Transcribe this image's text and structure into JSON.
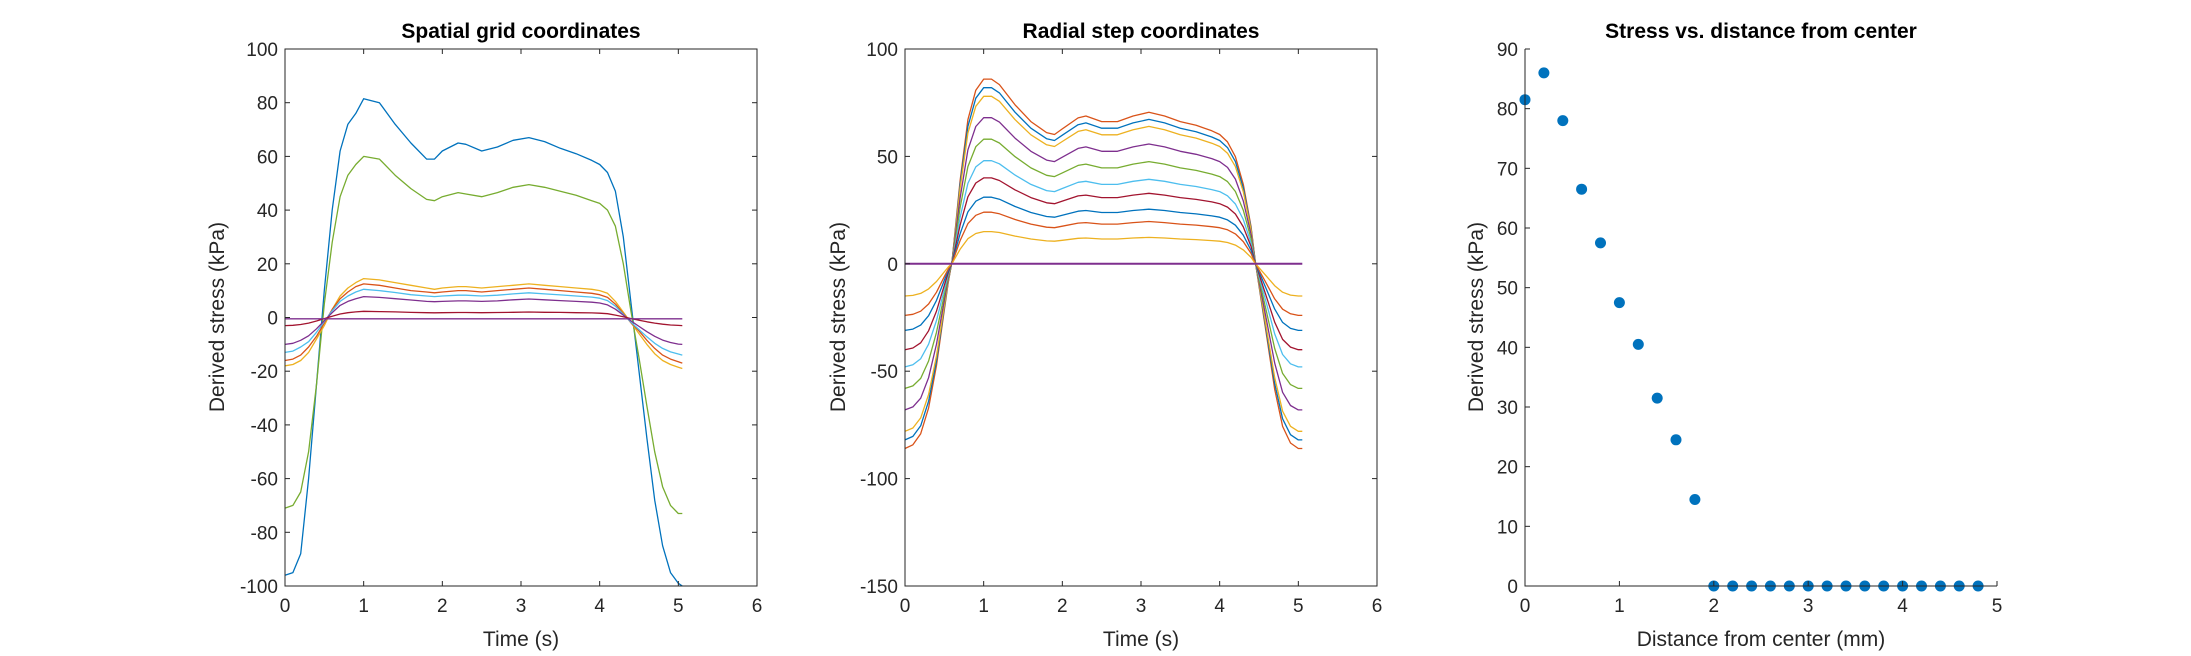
{
  "chart_data": [
    {
      "id": "p1",
      "type": "line",
      "title": "Spatial grid coordinates",
      "xlabel": "Time (s)",
      "ylabel": "Derived stress (kPa)",
      "xlim": [
        0,
        6
      ],
      "ylim": [
        -100,
        100
      ],
      "xticks": [
        0,
        1,
        2,
        3,
        4,
        5,
        6
      ],
      "yticks": [
        -100,
        -80,
        -60,
        -40,
        -20,
        0,
        20,
        40,
        60,
        80,
        100
      ],
      "x": [
        0,
        0.1,
        0.2,
        0.3,
        0.4,
        0.5,
        0.6,
        0.7,
        0.8,
        0.9,
        1.0,
        1.2,
        1.4,
        1.6,
        1.8,
        1.9,
        2.0,
        2.2,
        2.3,
        2.5,
        2.7,
        2.9,
        3.1,
        3.3,
        3.5,
        3.7,
        3.9,
        4.0,
        4.1,
        4.2,
        4.3,
        4.4,
        4.5,
        4.6,
        4.7,
        4.8,
        4.9,
        5.0,
        5.05
      ],
      "series": [
        {
          "color": "#0072BD",
          "values": [
            -96,
            -95,
            -88,
            -60,
            -25,
            10,
            40,
            62,
            72,
            76,
            81.5,
            80,
            72,
            65,
            59,
            59,
            62,
            65,
            64.5,
            62,
            63.5,
            66,
            67,
            65.5,
            63,
            61,
            58.5,
            57,
            54,
            47,
            30,
            5,
            -20,
            -45,
            -68,
            -85,
            -95,
            -99,
            -100
          ]
        },
        {
          "color": "#77AC30",
          "values": [
            -71,
            -70,
            -65,
            -50,
            -25,
            5,
            28,
            45,
            53,
            57,
            60,
            59,
            53,
            48,
            44,
            43.5,
            45,
            46.5,
            46,
            45,
            46.5,
            48.5,
            49.5,
            48.5,
            47,
            45.5,
            43.5,
            42.5,
            40,
            34,
            20,
            2,
            -15,
            -33,
            -50,
            -63,
            -70,
            -73,
            -73
          ]
        },
        {
          "color": "#EDB120",
          "values": [
            -18,
            -17.5,
            -16,
            -13,
            -8,
            -3,
            3,
            8,
            11,
            13,
            14.5,
            14,
            13,
            12,
            11,
            10.5,
            11,
            11.5,
            11.5,
            11,
            11.5,
            12,
            12.5,
            12,
            11.5,
            11,
            10.5,
            10,
            9,
            6,
            2,
            -2,
            -6,
            -10,
            -13.5,
            -16,
            -17.5,
            -18.5,
            -19
          ]
        },
        {
          "color": "#D95319",
          "values": [
            -16,
            -15.5,
            -14,
            -11,
            -7,
            -2,
            3,
            7,
            9.5,
            11.5,
            12.5,
            12,
            11,
            10,
            9.5,
            9.2,
            9.5,
            10,
            10,
            9.5,
            10,
            10.5,
            11,
            10.5,
            10,
            9.5,
            9,
            8.5,
            7.5,
            5,
            1.5,
            -2,
            -5,
            -8.5,
            -11.5,
            -14,
            -15.5,
            -16.5,
            -17
          ]
        },
        {
          "color": "#4DBEEE",
          "values": [
            -13,
            -12.5,
            -11,
            -9,
            -5.5,
            -1.5,
            2.5,
            6,
            8,
            9.5,
            10.5,
            10,
            9.3,
            8.5,
            8,
            7.8,
            8,
            8.3,
            8.3,
            8,
            8.3,
            8.8,
            9.2,
            8.8,
            8.4,
            8,
            7.6,
            7.2,
            6.3,
            4.2,
            1.2,
            -1.8,
            -4.5,
            -7.2,
            -9.6,
            -11.5,
            -12.8,
            -13.6,
            -14
          ]
        },
        {
          "color": "#7E2F8E",
          "values": [
            -10,
            -9.6,
            -8.5,
            -6.8,
            -4.2,
            -1.2,
            1.8,
            4.5,
            6,
            7,
            7.8,
            7.5,
            7,
            6.5,
            6,
            5.9,
            6,
            6.2,
            6.2,
            6,
            6.2,
            6.6,
            6.9,
            6.6,
            6.3,
            6,
            5.7,
            5.4,
            4.7,
            3.1,
            0.9,
            -1.3,
            -3.3,
            -5.3,
            -7,
            -8.4,
            -9.3,
            -9.9,
            -10
          ]
        },
        {
          "color": "#A2142F",
          "values": [
            -3,
            -2.9,
            -2.6,
            -2.1,
            -1.3,
            -0.4,
            0.5,
            1.3,
            1.8,
            2.1,
            2.3,
            2.2,
            2.1,
            1.9,
            1.8,
            1.75,
            1.8,
            1.85,
            1.85,
            1.8,
            1.85,
            1.95,
            2.05,
            1.95,
            1.9,
            1.8,
            1.7,
            1.6,
            1.4,
            0.9,
            0.3,
            -0.4,
            -1,
            -1.6,
            -2.1,
            -2.5,
            -2.8,
            -2.95,
            -3
          ]
        },
        {
          "color": "#7E2F8E",
          "values": [
            -0.5,
            -0.5,
            -0.5,
            -0.5,
            -0.5,
            -0.5,
            -0.5,
            -0.5,
            -0.5,
            -0.5,
            -0.5,
            -0.5,
            -0.5,
            -0.5,
            -0.5,
            -0.5,
            -0.5,
            -0.5,
            -0.5,
            -0.5,
            -0.5,
            -0.5,
            -0.5,
            -0.5,
            -0.5,
            -0.5,
            -0.5,
            -0.5,
            -0.5,
            -0.5,
            -0.5,
            -0.5,
            -0.5,
            -0.5,
            -0.5,
            -0.5,
            -0.5,
            -0.5,
            -0.5
          ]
        }
      ]
    },
    {
      "id": "p2",
      "type": "line",
      "title": "Radial step coordinates",
      "xlabel": "Time (s)",
      "ylabel": "Derived stress (kPa)",
      "xlim": [
        0,
        6
      ],
      "ylim": [
        -150,
        100
      ],
      "xticks": [
        0,
        1,
        2,
        3,
        4,
        5,
        6
      ],
      "yticks": [
        -150,
        -100,
        -50,
        0,
        50,
        100
      ],
      "shape_x": [
        0,
        0.1,
        0.2,
        0.3,
        0.4,
        0.5,
        0.55,
        0.6,
        0.7,
        0.8,
        0.9,
        1.0,
        1.1,
        1.2,
        1.4,
        1.6,
        1.8,
        1.9,
        2.0,
        2.2,
        2.3,
        2.5,
        2.7,
        2.9,
        3.1,
        3.3,
        3.5,
        3.7,
        3.9,
        4.0,
        4.1,
        4.2,
        4.3,
        4.4,
        4.45,
        4.5,
        4.6,
        4.7,
        4.8,
        4.9,
        5.0,
        5.05
      ],
      "shape_y": [
        -1,
        -0.98,
        -0.92,
        -0.78,
        -0.55,
        -0.25,
        -0.1,
        0.02,
        0.45,
        0.78,
        0.94,
        1.0,
        1.0,
        0.97,
        0.86,
        0.77,
        0.71,
        0.7,
        0.73,
        0.79,
        0.8,
        0.77,
        0.77,
        0.8,
        0.82,
        0.8,
        0.77,
        0.75,
        0.72,
        0.7,
        0.66,
        0.58,
        0.43,
        0.2,
        0.02,
        -0.12,
        -0.4,
        -0.68,
        -0.88,
        -0.97,
        -1.0,
        -1.0
      ],
      "series": [
        {
          "color": "#D95319",
          "amplitude": 86
        },
        {
          "color": "#0072BD",
          "amplitude": 82
        },
        {
          "color": "#EDB120",
          "amplitude": 78
        },
        {
          "color": "#7E2F8E",
          "amplitude": 68
        },
        {
          "color": "#77AC30",
          "amplitude": 58
        },
        {
          "color": "#4DBEEE",
          "amplitude": 48
        },
        {
          "color": "#A2142F",
          "amplitude": 40
        },
        {
          "color": "#0072BD",
          "amplitude": 31
        },
        {
          "color": "#D95319",
          "amplitude": 24
        },
        {
          "color": "#EDB120",
          "amplitude": 15
        },
        {
          "color": "#7E2F8E",
          "amplitude": 0
        }
      ]
    },
    {
      "id": "p3",
      "type": "scatter",
      "title": "Stress vs. distance from center",
      "xlabel": "Distance from center (mm)",
      "ylabel": "Derived stress (kPa)",
      "xlim": [
        0,
        5
      ],
      "ylim": [
        0,
        90
      ],
      "xticks": [
        0,
        1,
        2,
        3,
        4,
        5
      ],
      "yticks": [
        0,
        10,
        20,
        30,
        40,
        50,
        60,
        70,
        80,
        90
      ],
      "color": "#0072BD",
      "x": [
        0,
        0.2,
        0.4,
        0.6,
        0.8,
        1.0,
        1.2,
        1.4,
        1.6,
        1.8,
        2.0,
        2.2,
        2.4,
        2.6,
        2.8,
        3.0,
        3.2,
        3.4,
        3.6,
        3.8,
        4.0,
        4.2,
        4.4,
        4.6,
        4.8
      ],
      "y": [
        81.5,
        86,
        78,
        66.5,
        57.5,
        47.5,
        40.5,
        31.5,
        24.5,
        14.5,
        0,
        0,
        0,
        0,
        0,
        0,
        0,
        0,
        0,
        0,
        0,
        0,
        0,
        0,
        0
      ]
    }
  ]
}
